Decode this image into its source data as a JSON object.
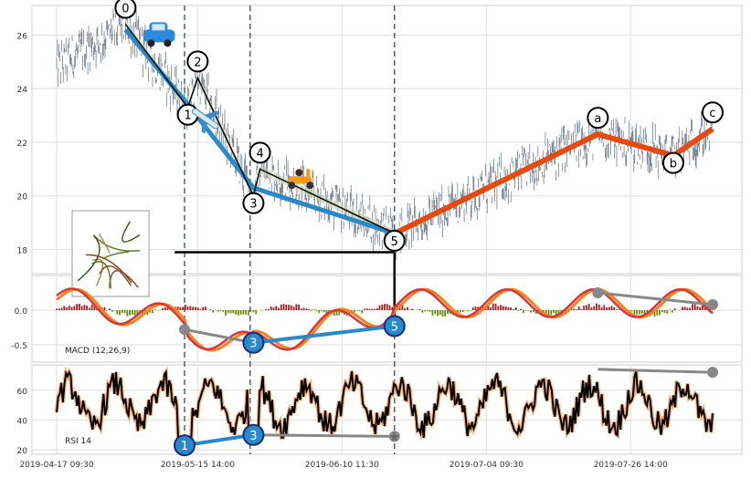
{
  "chart_data": [
    {
      "type": "line",
      "panel": "price",
      "xlim": [
        0,
        200
      ],
      "ylim": [
        17.1,
        27.1
      ],
      "yticks": [
        18,
        20,
        22,
        24,
        26
      ],
      "grid": true,
      "x_tick_labels": [
        {
          "x": 0,
          "label": "2019-04-17 09:30"
        },
        {
          "x": 43,
          "label": "2019-05-15 14:00"
        },
        {
          "x": 87,
          "label": "2019-06-10 11:30"
        },
        {
          "x": 131,
          "label": "2019-07-04 09:30"
        },
        {
          "x": 175,
          "label": "2019-07-26 14:00"
        }
      ],
      "vertical_markers": [
        39,
        59,
        103
      ],
      "wave_points": [
        {
          "label": "0",
          "x": 21,
          "y": 26.4
        },
        {
          "label": "1",
          "x": 40,
          "y": 23.3
        },
        {
          "label": "2",
          "x": 43,
          "y": 24.4
        },
        {
          "label": "3",
          "x": 60,
          "y": 20.0
        },
        {
          "label": "4",
          "x": 62,
          "y": 21.0
        },
        {
          "label": "5",
          "x": 103,
          "y": 18.6
        },
        {
          "label": "a",
          "x": 165,
          "y": 22.3
        },
        {
          "label": "b",
          "x": 188,
          "y": 21.5
        },
        {
          "label": "c",
          "x": 200,
          "y": 22.5
        }
      ],
      "blue_trend": [
        {
          "x": 21,
          "y": 26.2
        },
        {
          "x": 40,
          "y": 23.4
        },
        {
          "x": 60,
          "y": 20.3
        },
        {
          "x": 103,
          "y": 18.6
        }
      ],
      "red_trend": [
        {
          "x": 103,
          "y": 18.6
        },
        {
          "x": 165,
          "y": 22.3
        },
        {
          "x": 188,
          "y": 21.5
        },
        {
          "x": 200,
          "y": 22.5
        }
      ],
      "price_range": {
        "first": 24.8,
        "min": 18.3,
        "max": 26.5,
        "last": 22.0
      }
    },
    {
      "type": "bar",
      "panel": "macd",
      "label": "MACD (12,26,9)",
      "ylim": [
        -0.75,
        0.5
      ],
      "yticks": [
        0.0,
        -0.5
      ],
      "grid": true,
      "divergence": [
        {
          "label": "3",
          "x": 60,
          "y": -0.47
        },
        {
          "label": "5",
          "x": 103,
          "y": -0.23
        }
      ],
      "grey_lines": [
        {
          "from": {
            "x": 39,
            "y": -0.28
          },
          "to": {
            "x": 60,
            "y": -0.47
          }
        },
        {
          "from": {
            "x": 165,
            "y": 0.25
          },
          "to": {
            "x": 200,
            "y": 0.08
          }
        }
      ]
    },
    {
      "type": "line",
      "panel": "rsi",
      "label": "RSI 14",
      "ylim": [
        17,
        77
      ],
      "yticks": [
        20,
        40,
        60
      ],
      "grid": true,
      "divergence": [
        {
          "label": "1",
          "x": 39,
          "y": 23
        },
        {
          "label": "3",
          "x": 60,
          "y": 30
        }
      ],
      "grey_lines": [
        {
          "from": {
            "x": 60,
            "y": 30
          },
          "to": {
            "x": 103,
            "y": 29
          }
        },
        {
          "from": {
            "x": 165,
            "y": 74
          },
          "to": {
            "x": 200,
            "y": 72
          }
        }
      ]
    }
  ]
}
